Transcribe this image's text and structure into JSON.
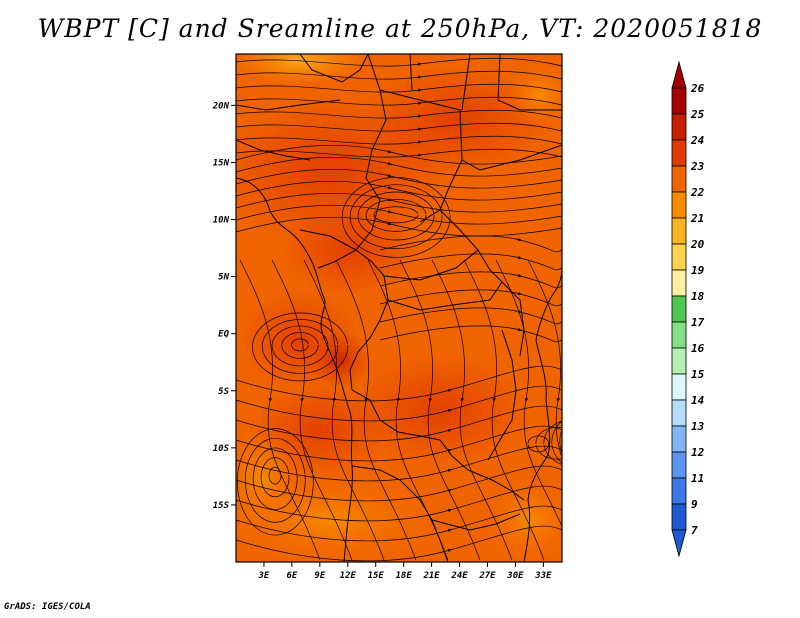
{
  "title": "WBPT [C] and Sreamline at 250hPa, VT: 2020051818",
  "credit": "GrADS: IGES/COLA",
  "map": {
    "lat_labels": [
      "20N",
      "15N",
      "10N",
      "5N",
      "EQ",
      "5S",
      "10S",
      "15S"
    ],
    "lat_values": [
      20,
      15,
      10,
      5,
      0,
      -5,
      -10,
      -15
    ],
    "lon_labels": [
      "3E",
      "6E",
      "9E",
      "12E",
      "15E",
      "18E",
      "21E",
      "24E",
      "27E",
      "30E",
      "33E"
    ],
    "lon_values": [
      3,
      6,
      9,
      12,
      15,
      18,
      21,
      24,
      27,
      30,
      33
    ],
    "lon_range": [
      0,
      35
    ],
    "lat_range": [
      -20,
      24.5
    ],
    "field_level_dominant": 23,
    "warm_core_level": 24
  },
  "colorbar": {
    "labels": [
      "26",
      "25",
      "24",
      "23",
      "22",
      "21",
      "20",
      "19",
      "18",
      "17",
      "16",
      "15",
      "14",
      "13",
      "12",
      "11",
      "9",
      "7"
    ],
    "colors": [
      "#a50000",
      "#c81e00",
      "#e13c00",
      "#f06400",
      "#f88c00",
      "#fcb41e",
      "#fcd250",
      "#fcf0a0",
      "#50c850",
      "#82e182",
      "#b4f0b4",
      "#dcf8f8",
      "#b4dcfc",
      "#82b4fa",
      "#5a96f0",
      "#3c78e6",
      "#1e5ad2"
    ],
    "top_arrow_color": "#a50000",
    "bottom_arrow_color": "#1e5ad2"
  }
}
